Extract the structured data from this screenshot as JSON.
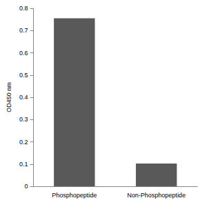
{
  "chart_data": {
    "type": "bar",
    "categories": [
      "Phosphopeptide",
      "Non-Phosphopeptide"
    ],
    "values": [
      0.755,
      0.102
    ],
    "color": "#595959",
    "y_label": "OD450 nm",
    "ylim": [
      0,
      0.8
    ],
    "yticks": [
      0,
      0.1,
      0.2,
      0.3,
      0.4,
      0.5,
      0.6,
      0.7,
      0.8
    ],
    "grid": false
  }
}
